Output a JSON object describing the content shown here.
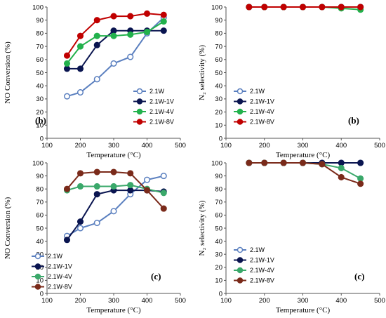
{
  "chart_data": [
    {
      "type": "line",
      "panel_label": "(b)",
      "xlabel": "Temperature (°C)",
      "ylabel": "NO Conversion (%)",
      "xlim": [
        100,
        500
      ],
      "ylim": [
        0,
        100
      ],
      "xticks": [
        100,
        200,
        300,
        400,
        500
      ],
      "yticks": [
        0,
        10,
        20,
        30,
        40,
        50,
        60,
        70,
        80,
        90,
        100
      ],
      "grid": false,
      "legend_position": "bottom-right",
      "series": [
        {
          "name": "2.1W",
          "color": "#5a7fbf",
          "marker": "hollow-circle",
          "x": [
            160,
            200,
            250,
            300,
            350,
            400,
            450
          ],
          "y": [
            32,
            35,
            45,
            57,
            62,
            80,
            92
          ]
        },
        {
          "name": "2.1W-1V",
          "color": "#0a1550",
          "marker": "filled-circle",
          "x": [
            160,
            200,
            250,
            300,
            350,
            400,
            450
          ],
          "y": [
            53,
            53,
            71,
            82,
            82,
            82,
            82
          ]
        },
        {
          "name": "2.1W-4V",
          "color": "#22b14c",
          "marker": "filled-circle",
          "x": [
            160,
            200,
            250,
            300,
            350,
            400,
            450
          ],
          "y": [
            57,
            70,
            78,
            78,
            79,
            81,
            89
          ]
        },
        {
          "name": "2.1W-8V",
          "color": "#c00000",
          "marker": "filled-circle",
          "x": [
            160,
            200,
            250,
            300,
            350,
            400,
            450
          ],
          "y": [
            63,
            78,
            90,
            93,
            93,
            95,
            94
          ]
        }
      ]
    },
    {
      "type": "line",
      "panel_label": "(b)",
      "xlabel": "Temperature (°C)",
      "ylabel": "N₂ selectivity (%)",
      "xlim": [
        100,
        500
      ],
      "ylim": [
        0,
        100
      ],
      "xticks": [
        100,
        200,
        300,
        400,
        500
      ],
      "yticks": [
        0,
        10,
        20,
        30,
        40,
        50,
        60,
        70,
        80,
        90,
        100
      ],
      "grid": false,
      "legend_position": "bottom-left",
      "series": [
        {
          "name": "2.1W",
          "color": "#5a7fbf",
          "marker": "hollow-circle",
          "x": [
            160,
            200,
            250,
            300,
            350,
            400,
            450
          ],
          "y": [
            100,
            100,
            100,
            100,
            100,
            100,
            100
          ]
        },
        {
          "name": "2.1W-1V",
          "color": "#0a1550",
          "marker": "filled-circle",
          "x": [
            160,
            200,
            250,
            300,
            350,
            400,
            450
          ],
          "y": [
            100,
            100,
            100,
            100,
            100,
            100,
            100
          ]
        },
        {
          "name": "2.1W-4V",
          "color": "#22b14c",
          "marker": "filled-circle",
          "x": [
            160,
            200,
            250,
            300,
            350,
            400,
            450
          ],
          "y": [
            100,
            100,
            100,
            100,
            100,
            99,
            98
          ]
        },
        {
          "name": "2.1W-8V",
          "color": "#c00000",
          "marker": "filled-circle",
          "x": [
            160,
            200,
            250,
            300,
            350,
            400,
            450
          ],
          "y": [
            100,
            100,
            100,
            100,
            100,
            100,
            100
          ]
        }
      ]
    },
    {
      "type": "line",
      "panel_label": "(c)",
      "xlabel": "Temperature (°C)",
      "ylabel": "NO Conversion (%)",
      "xlim": [
        100,
        500
      ],
      "ylim": [
        0,
        100
      ],
      "xticks": [
        100,
        200,
        300,
        400,
        500
      ],
      "yticks": [
        0,
        10,
        20,
        30,
        40,
        50,
        60,
        70,
        80,
        90,
        100
      ],
      "grid": false,
      "legend_position": "bottom-left",
      "series": [
        {
          "name": "2.1W",
          "color": "#5a7fbf",
          "marker": "hollow-circle",
          "x": [
            160,
            200,
            250,
            300,
            350,
            400,
            450
          ],
          "y": [
            44,
            50,
            54,
            63,
            76,
            87,
            90
          ]
        },
        {
          "name": "2.1W-1V",
          "color": "#0a1550",
          "marker": "filled-circle",
          "x": [
            160,
            200,
            250,
            300,
            350,
            400,
            450
          ],
          "y": [
            41,
            55,
            76,
            79,
            79,
            79,
            78
          ]
        },
        {
          "name": "2.1W-4V",
          "color": "#3aa86a",
          "marker": "filled-circle",
          "x": [
            160,
            200,
            250,
            300,
            350,
            400,
            450
          ],
          "y": [
            79,
            82,
            82,
            82,
            83,
            80,
            77
          ]
        },
        {
          "name": "2.1W-8V",
          "color": "#7a2a1a",
          "marker": "filled-circle",
          "x": [
            160,
            200,
            250,
            300,
            350,
            400,
            450
          ],
          "y": [
            80,
            92,
            93,
            93,
            92,
            79,
            65
          ]
        }
      ]
    },
    {
      "type": "line",
      "panel_label": "(c)",
      "xlabel": "Temperature (°C)",
      "ylabel": "N₂ selectivity (%)",
      "xlim": [
        100,
        500
      ],
      "ylim": [
        0,
        100
      ],
      "xticks": [
        100,
        200,
        300,
        400,
        500
      ],
      "yticks": [
        0,
        10,
        20,
        30,
        40,
        50,
        60,
        70,
        80,
        90,
        100
      ],
      "grid": false,
      "legend_position": "bottom-left",
      "series": [
        {
          "name": "2.1W",
          "color": "#5a7fbf",
          "marker": "hollow-circle",
          "x": [
            160,
            200,
            250,
            300,
            350,
            400,
            450
          ],
          "y": [
            100,
            100,
            100,
            100,
            100,
            100,
            100
          ]
        },
        {
          "name": "2.1W-1V",
          "color": "#0a1550",
          "marker": "filled-circle",
          "x": [
            160,
            200,
            250,
            300,
            350,
            400,
            450
          ],
          "y": [
            100,
            100,
            100,
            100,
            100,
            100,
            100
          ]
        },
        {
          "name": "2.1W-4V",
          "color": "#3aa86a",
          "marker": "filled-circle",
          "x": [
            160,
            200,
            250,
            300,
            350,
            400,
            450
          ],
          "y": [
            100,
            100,
            100,
            100,
            99,
            96,
            88
          ]
        },
        {
          "name": "2.1W-8V",
          "color": "#7a2a1a",
          "marker": "filled-circle",
          "x": [
            160,
            200,
            250,
            300,
            350,
            400,
            450
          ],
          "y": [
            100,
            100,
            100,
            100,
            99,
            89,
            84
          ]
        }
      ]
    }
  ]
}
